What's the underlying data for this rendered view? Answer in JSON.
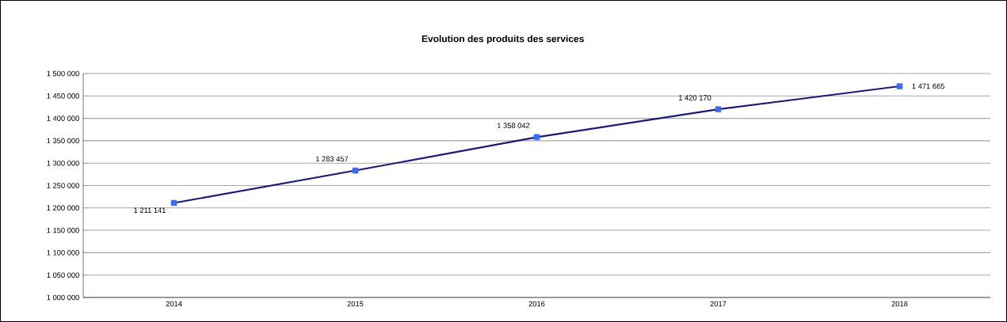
{
  "chart_data": {
    "type": "line",
    "title": "Evolution des produits des services",
    "categories": [
      "2014",
      "2015",
      "2016",
      "2017",
      "2018"
    ],
    "series": [
      {
        "color": "#1a1a7a",
        "colors": [
          "#3a6cf0",
          "#3a6cf0",
          "#3a6cf0",
          "#3a6cf0",
          "#3a6cf0"
        ],
        "values": [
          1211141,
          1283457,
          1358042,
          1420170,
          1471665
        ],
        "value_labels": [
          "1 211 141",
          "1 283 457",
          "1 358 042",
          "1 420 170",
          "1 471 665"
        ]
      }
    ],
    "ylim": [
      1000000,
      1500000
    ],
    "yticks": [
      {
        "value": 1000000,
        "label": "1 000 000"
      },
      {
        "value": 1050000,
        "label": "1 050 000"
      },
      {
        "value": 1100000,
        "label": "1 100 000"
      },
      {
        "value": 1150000,
        "label": "1 150 000"
      },
      {
        "value": 1200000,
        "label": "1 200 000"
      },
      {
        "value": 1250000,
        "label": "1 250 000"
      },
      {
        "value": 1300000,
        "label": "1 300 000"
      },
      {
        "value": 1350000,
        "label": "1 350 000"
      },
      {
        "value": 1400000,
        "label": "1 400 000"
      },
      {
        "value": 1450000,
        "label": "1 450 000"
      },
      {
        "value": 1500000,
        "label": "1 500 000"
      }
    ],
    "grid": "y",
    "marker": "square",
    "line_style": "solid"
  }
}
